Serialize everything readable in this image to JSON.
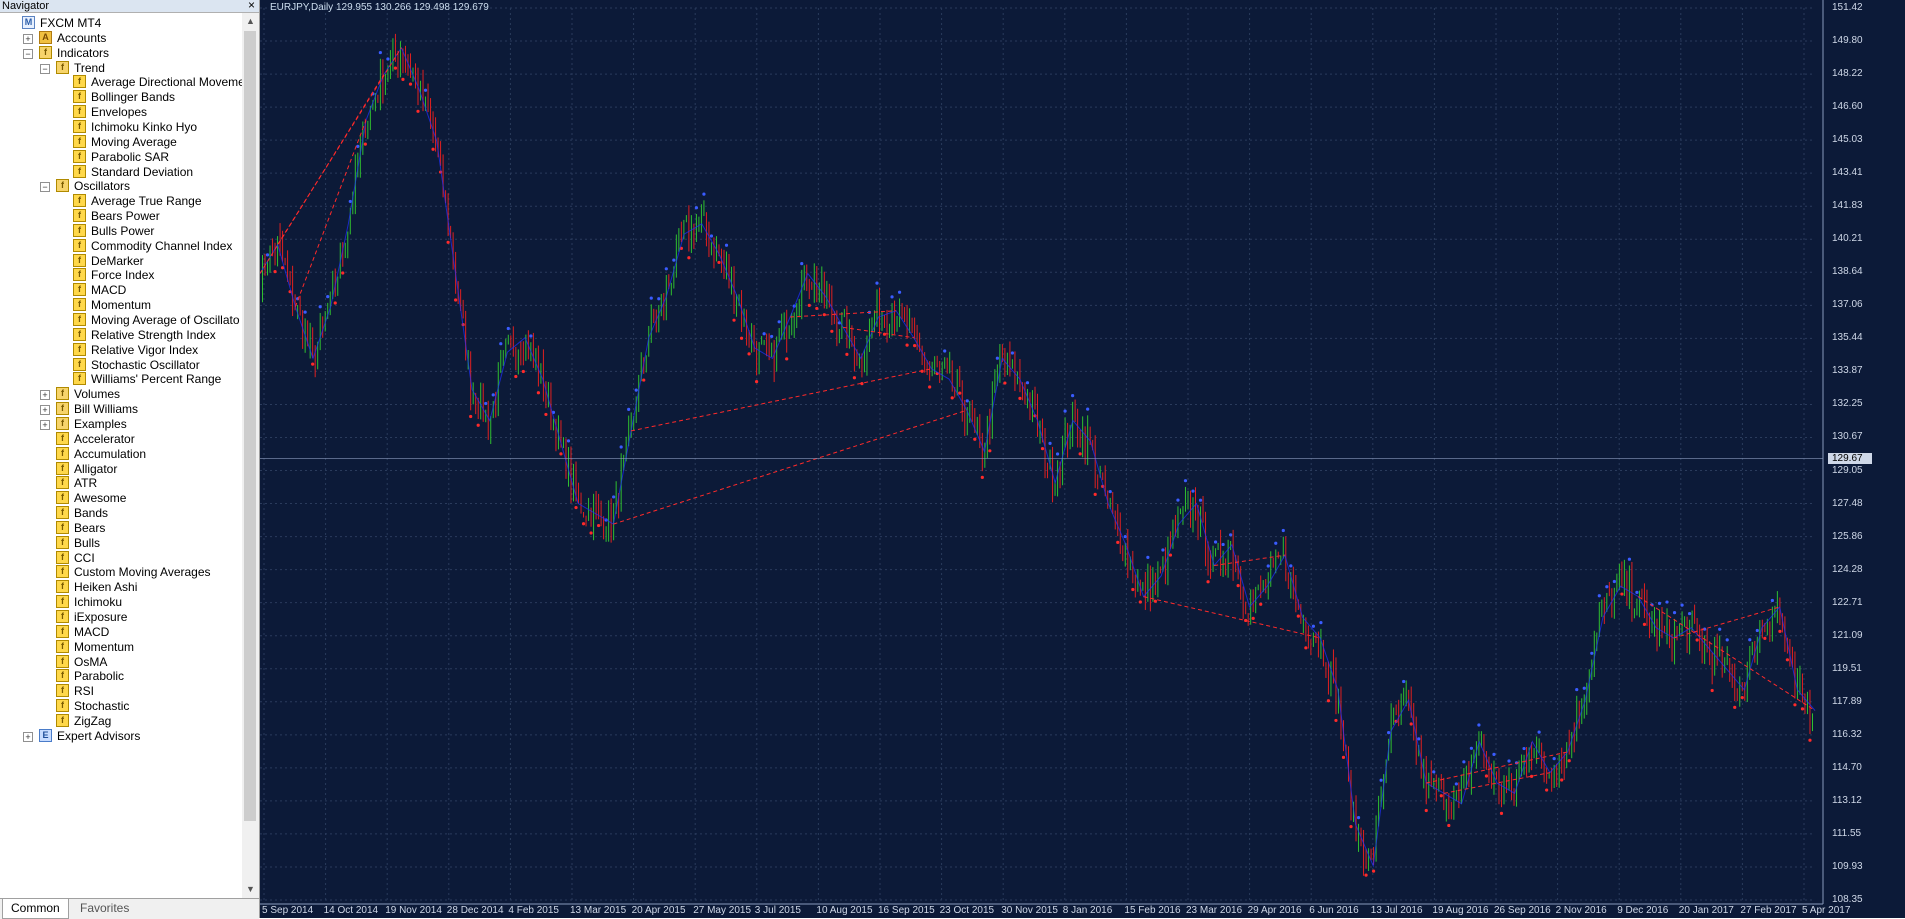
{
  "navigator": {
    "title": "Navigator",
    "close_label": "×",
    "tree": [
      {
        "label": "FXCM MT4",
        "level": 0,
        "icon": "root-icon",
        "toggle": ""
      },
      {
        "label": "Accounts",
        "level": 1,
        "icon": "accounts-icon",
        "toggle": "+"
      },
      {
        "label": "Indicators",
        "level": 1,
        "icon": "folder-icon",
        "toggle": "−"
      },
      {
        "label": "Trend",
        "level": 2,
        "icon": "folder-icon",
        "toggle": "−"
      },
      {
        "label": "Average Directional Moveme",
        "level": 3,
        "icon": "indicator-icon",
        "toggle": ""
      },
      {
        "label": "Bollinger Bands",
        "level": 3,
        "icon": "indicator-icon",
        "toggle": ""
      },
      {
        "label": "Envelopes",
        "level": 3,
        "icon": "indicator-icon",
        "toggle": ""
      },
      {
        "label": "Ichimoku Kinko Hyo",
        "level": 3,
        "icon": "indicator-icon",
        "toggle": ""
      },
      {
        "label": "Moving Average",
        "level": 3,
        "icon": "indicator-icon",
        "toggle": ""
      },
      {
        "label": "Parabolic SAR",
        "level": 3,
        "icon": "indicator-icon",
        "toggle": ""
      },
      {
        "label": "Standard Deviation",
        "level": 3,
        "icon": "indicator-icon",
        "toggle": ""
      },
      {
        "label": "Oscillators",
        "level": 2,
        "icon": "folder-icon",
        "toggle": "−"
      },
      {
        "label": "Average True Range",
        "level": 3,
        "icon": "indicator-icon",
        "toggle": ""
      },
      {
        "label": "Bears Power",
        "level": 3,
        "icon": "indicator-icon",
        "toggle": ""
      },
      {
        "label": "Bulls Power",
        "level": 3,
        "icon": "indicator-icon",
        "toggle": ""
      },
      {
        "label": "Commodity Channel Index",
        "level": 3,
        "icon": "indicator-icon",
        "toggle": ""
      },
      {
        "label": "DeMarker",
        "level": 3,
        "icon": "indicator-icon",
        "toggle": ""
      },
      {
        "label": "Force Index",
        "level": 3,
        "icon": "indicator-icon",
        "toggle": ""
      },
      {
        "label": "MACD",
        "level": 3,
        "icon": "indicator-icon",
        "toggle": ""
      },
      {
        "label": "Momentum",
        "level": 3,
        "icon": "indicator-icon",
        "toggle": ""
      },
      {
        "label": "Moving Average of Oscillato",
        "level": 3,
        "icon": "indicator-icon",
        "toggle": ""
      },
      {
        "label": "Relative Strength Index",
        "level": 3,
        "icon": "indicator-icon",
        "toggle": ""
      },
      {
        "label": "Relative Vigor Index",
        "level": 3,
        "icon": "indicator-icon",
        "toggle": ""
      },
      {
        "label": "Stochastic Oscillator",
        "level": 3,
        "icon": "indicator-icon",
        "toggle": ""
      },
      {
        "label": "Williams' Percent Range",
        "level": 3,
        "icon": "indicator-icon",
        "toggle": ""
      },
      {
        "label": "Volumes",
        "level": 2,
        "icon": "folder-icon",
        "toggle": "+"
      },
      {
        "label": "Bill Williams",
        "level": 2,
        "icon": "folder-icon",
        "toggle": "+"
      },
      {
        "label": "Examples",
        "level": 2,
        "icon": "folder-icon",
        "toggle": "+"
      },
      {
        "label": "Accelerator",
        "level": 2,
        "icon": "custom-indicator-icon",
        "toggle": ""
      },
      {
        "label": "Accumulation",
        "level": 2,
        "icon": "custom-indicator-icon",
        "toggle": ""
      },
      {
        "label": "Alligator",
        "level": 2,
        "icon": "custom-indicator-icon",
        "toggle": ""
      },
      {
        "label": "ATR",
        "level": 2,
        "icon": "custom-indicator-icon",
        "toggle": ""
      },
      {
        "label": "Awesome",
        "level": 2,
        "icon": "custom-indicator-icon",
        "toggle": ""
      },
      {
        "label": "Bands",
        "level": 2,
        "icon": "custom-indicator-icon",
        "toggle": ""
      },
      {
        "label": "Bears",
        "level": 2,
        "icon": "custom-indicator-icon",
        "toggle": ""
      },
      {
        "label": "Bulls",
        "level": 2,
        "icon": "custom-indicator-icon",
        "toggle": ""
      },
      {
        "label": "CCI",
        "level": 2,
        "icon": "custom-indicator-icon",
        "toggle": ""
      },
      {
        "label": "Custom Moving Averages",
        "level": 2,
        "icon": "custom-indicator-icon",
        "toggle": ""
      },
      {
        "label": "Heiken Ashi",
        "level": 2,
        "icon": "custom-indicator-icon",
        "toggle": ""
      },
      {
        "label": "Ichimoku",
        "level": 2,
        "icon": "custom-indicator-icon",
        "toggle": ""
      },
      {
        "label": "iExposure",
        "level": 2,
        "icon": "custom-indicator-icon",
        "toggle": ""
      },
      {
        "label": "MACD",
        "level": 2,
        "icon": "custom-indicator-icon",
        "toggle": ""
      },
      {
        "label": "Momentum",
        "level": 2,
        "icon": "custom-indicator-icon",
        "toggle": ""
      },
      {
        "label": "OsMA",
        "level": 2,
        "icon": "custom-indicator-icon",
        "toggle": ""
      },
      {
        "label": "Parabolic",
        "level": 2,
        "icon": "custom-indicator-icon",
        "toggle": ""
      },
      {
        "label": "RSI",
        "level": 2,
        "icon": "custom-indicator-icon",
        "toggle": ""
      },
      {
        "label": "Stochastic",
        "level": 2,
        "icon": "custom-indicator-icon",
        "toggle": ""
      },
      {
        "label": "ZigZag",
        "level": 2,
        "icon": "custom-indicator-icon",
        "toggle": ""
      },
      {
        "label": "Expert Advisors",
        "level": 1,
        "icon": "expert-icon",
        "toggle": "+"
      }
    ],
    "tabs": {
      "common": "Common",
      "favorites": "Favorites"
    }
  },
  "chart": {
    "info": "EURJPY,Daily  129.955 130.266 129.498 129.679",
    "current_price": "129.67",
    "colors": {
      "background": "#0c1a38",
      "bull": "#2fbf2f",
      "bear": "#e02020",
      "zigzag": "#2030ff",
      "dashed": "#ff2a2a",
      "grid": "#2a3b5c"
    }
  },
  "chart_data": {
    "type": "line",
    "title": "EURJPY,Daily",
    "xlabel": "",
    "ylabel": "",
    "ylim": [
      108.35,
      151.42
    ],
    "y_ticks": [
      "151.42",
      "149.80",
      "148.22",
      "146.60",
      "145.03",
      "143.41",
      "141.83",
      "140.21",
      "138.64",
      "137.06",
      "135.44",
      "133.87",
      "132.25",
      "130.67",
      "129.05",
      "127.48",
      "125.86",
      "124.28",
      "122.71",
      "121.09",
      "119.51",
      "117.89",
      "116.32",
      "114.70",
      "113.12",
      "111.55",
      "109.93",
      "108.35"
    ],
    "x_ticks": [
      "5 Sep 2014",
      "14 Oct 2014",
      "19 Nov 2014",
      "28 Dec 2014",
      "4 Feb 2015",
      "13 Mar 2015",
      "20 Apr 2015",
      "27 May 2015",
      "3 Jul 2015",
      "10 Aug 2015",
      "16 Sep 2015",
      "23 Oct 2015",
      "30 Nov 2015",
      "8 Jan 2016",
      "15 Feb 2016",
      "23 Mar 2016",
      "29 Apr 2016",
      "6 Jun 2016",
      "13 Jul 2016",
      "19 Aug 2016",
      "26 Sep 2016",
      "2 Nov 2016",
      "9 Dec 2016",
      "20 Jan 2017",
      "27 Feb 2017",
      "5 Apr 2017"
    ],
    "series": [
      {
        "values": [
          138.6,
          140.0,
          137.0,
          134.5,
          137.0,
          141.0,
          146.0,
          148.2,
          149.5,
          147.5,
          145.0,
          139.0,
          133.0,
          131.5,
          134.8,
          135.5,
          133.5,
          130.5,
          127.5,
          127.0,
          126.5,
          131.0,
          135.5,
          137.5,
          140.5,
          141.0,
          139.5,
          137.5,
          135.0,
          134.5,
          136.5,
          138.6,
          137.5,
          136.0,
          134.5,
          136.5,
          136.8,
          135.5,
          134.0,
          133.5,
          132.0,
          130.0,
          134.5,
          133.5,
          131.5,
          128.5,
          131.5,
          130.5,
          127.5,
          125.5,
          123.0,
          124.0,
          126.5,
          127.5,
          124.5,
          125.5,
          122.5,
          123.5,
          125.0,
          122.0,
          121.0,
          118.5,
          112.0,
          110.0,
          116.5,
          118.0,
          114.0,
          113.5,
          113.0,
          116.0,
          114.0,
          113.5,
          116.0,
          114.5,
          115.5,
          118.0,
          122.0,
          123.5,
          123.0,
          121.5,
          121.0,
          121.5,
          120.5,
          119.5,
          118.5,
          121.5,
          122.5,
          118.5,
          117.5
        ]
      }
    ]
  }
}
